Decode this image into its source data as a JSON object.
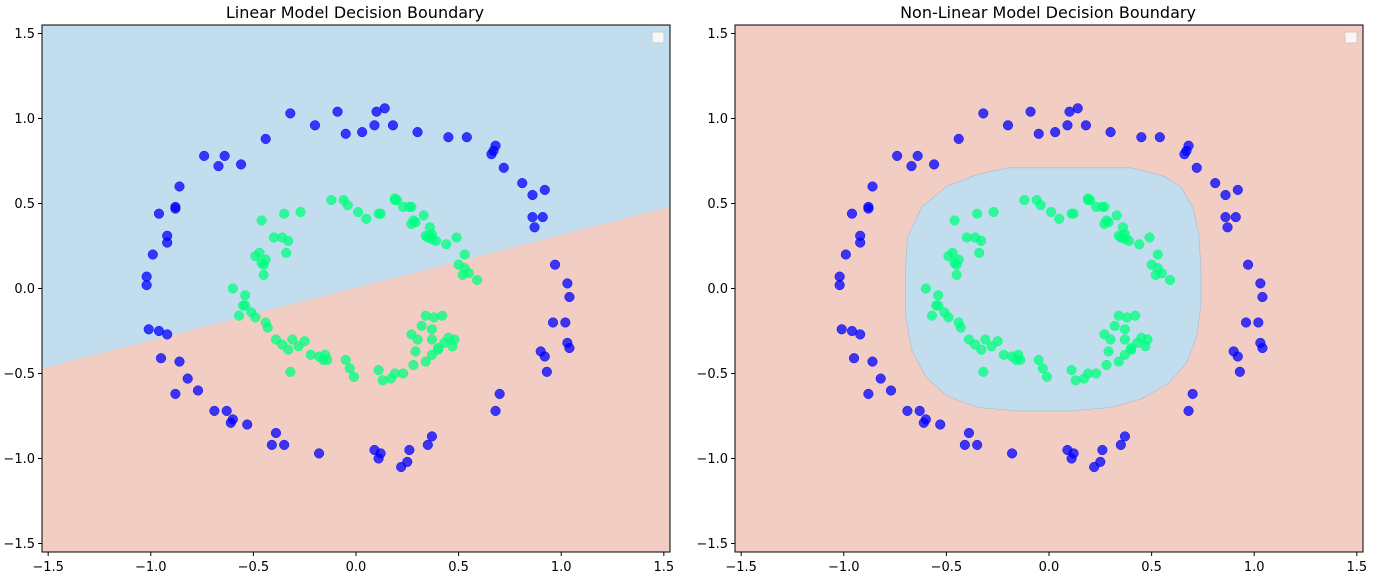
{
  "chart_data": [
    {
      "type": "scatter",
      "title": "Linear Model Decision Boundary",
      "xlim": [
        -1.53,
        1.53
      ],
      "ylim": [
        -1.55,
        1.55
      ],
      "xticks": [
        -1.5,
        -1.0,
        -0.5,
        0.0,
        0.5,
        1.0,
        1.5
      ],
      "xtick_labels": [
        "−1.5",
        "−1.0",
        "−0.5",
        "0.0",
        "0.5",
        "1.0",
        "1.5"
      ],
      "yticks": [
        -1.5,
        -1.0,
        -0.5,
        0.0,
        0.5,
        1.0,
        1.5
      ],
      "ytick_labels": [
        "−1.5",
        "−1.0",
        "−0.5",
        "0.0",
        "0.5",
        "1.0",
        "1.5"
      ],
      "legend": "empty, top-right",
      "regions": {
        "background_color": "#f2cdc3",
        "boundary_type": "linear",
        "boundary_line": [
          [
            -1.53,
            -0.47
          ],
          [
            1.53,
            0.48
          ]
        ],
        "above_color": "#c2dded",
        "below_color": "#f2cdc3"
      },
      "series_ref": "shared"
    },
    {
      "type": "scatter",
      "title": "Non-Linear Model Decision Boundary",
      "xlim": [
        -1.53,
        1.53
      ],
      "ylim": [
        -1.55,
        1.55
      ],
      "xticks": [
        -1.5,
        -1.0,
        -0.5,
        0.0,
        0.5,
        1.0,
        1.5
      ],
      "xtick_labels": [
        "−1.5",
        "−1.0",
        "−0.5",
        "0.0",
        "0.5",
        "1.0",
        "1.5"
      ],
      "yticks": [
        -1.5,
        -1.0,
        -0.5,
        0.0,
        0.5,
        1.0,
        1.5
      ],
      "ytick_labels": [
        "−1.5",
        "−1.0",
        "−0.5",
        "0.0",
        "0.5",
        "1.0",
        "1.5"
      ],
      "legend": "empty, top-right",
      "regions": {
        "background_color": "#f2cdc3",
        "boundary_type": "closed",
        "inner_color": "#c2dded",
        "boundary_polygon": [
          [
            -0.2,
            0.71
          ],
          [
            0.4,
            0.71
          ],
          [
            0.56,
            0.66
          ],
          [
            0.64,
            0.6
          ],
          [
            0.7,
            0.48
          ],
          [
            0.73,
            0.32
          ],
          [
            0.74,
            0.12
          ],
          [
            0.74,
            -0.1
          ],
          [
            0.72,
            -0.28
          ],
          [
            0.67,
            -0.44
          ],
          [
            0.58,
            -0.56
          ],
          [
            0.45,
            -0.65
          ],
          [
            0.3,
            -0.7
          ],
          [
            0.1,
            -0.72
          ],
          [
            -0.15,
            -0.72
          ],
          [
            -0.35,
            -0.7
          ],
          [
            -0.5,
            -0.63
          ],
          [
            -0.6,
            -0.52
          ],
          [
            -0.67,
            -0.36
          ],
          [
            -0.7,
            -0.15
          ],
          [
            -0.7,
            0.1
          ],
          [
            -0.69,
            0.3
          ],
          [
            -0.62,
            0.48
          ],
          [
            -0.5,
            0.6
          ],
          [
            -0.35,
            0.67
          ]
        ]
      },
      "series_ref": "shared"
    }
  ],
  "series": [
    {
      "class": 0,
      "color": "#0000ff",
      "points": [
        [
          -1.02,
          0.07
        ],
        [
          -1.02,
          0.02
        ],
        [
          -0.99,
          0.2
        ],
        [
          -0.96,
          0.44
        ],
        [
          -0.92,
          0.31
        ],
        [
          -0.92,
          0.27
        ],
        [
          -0.88,
          0.48
        ],
        [
          -0.88,
          0.47
        ],
        [
          -0.86,
          0.6
        ],
        [
          -0.74,
          0.78
        ],
        [
          -0.67,
          0.72
        ],
        [
          -0.64,
          0.78
        ],
        [
          -0.56,
          0.73
        ],
        [
          -0.44,
          0.88
        ],
        [
          -0.32,
          1.03
        ],
        [
          -0.2,
          0.96
        ],
        [
          -0.09,
          1.04
        ],
        [
          -0.05,
          0.91
        ],
        [
          0.03,
          0.92
        ],
        [
          0.09,
          0.96
        ],
        [
          0.1,
          1.04
        ],
        [
          0.14,
          1.06
        ],
        [
          0.18,
          0.96
        ],
        [
          0.3,
          0.92
        ],
        [
          0.45,
          0.89
        ],
        [
          0.54,
          0.89
        ],
        [
          0.66,
          0.79
        ],
        [
          0.68,
          0.84
        ],
        [
          0.67,
          0.81
        ],
        [
          0.72,
          0.71
        ],
        [
          0.81,
          0.62
        ],
        [
          0.86,
          0.55
        ],
        [
          0.92,
          0.58
        ],
        [
          0.86,
          0.42
        ],
        [
          0.87,
          0.36
        ],
        [
          0.91,
          0.42
        ],
        [
          0.97,
          0.14
        ],
        [
          1.03,
          0.03
        ],
        [
          1.04,
          -0.05
        ],
        [
          0.96,
          -0.2
        ],
        [
          1.02,
          -0.2
        ],
        [
          1.03,
          -0.32
        ],
        [
          1.04,
          -0.35
        ],
        [
          0.9,
          -0.37
        ],
        [
          0.92,
          -0.4
        ],
        [
          0.93,
          -0.49
        ],
        [
          0.7,
          -0.62
        ],
        [
          0.68,
          -0.72
        ],
        [
          0.37,
          -0.87
        ],
        [
          0.35,
          -0.92
        ],
        [
          0.26,
          -0.95
        ],
        [
          0.25,
          -1.02
        ],
        [
          0.22,
          -1.05
        ],
        [
          0.12,
          -0.97
        ],
        [
          0.11,
          -1.0
        ],
        [
          0.09,
          -0.95
        ],
        [
          -0.18,
          -0.97
        ],
        [
          -0.35,
          -0.92
        ],
        [
          -0.41,
          -0.92
        ],
        [
          -0.39,
          -0.85
        ],
        [
          -0.53,
          -0.8
        ],
        [
          -0.6,
          -0.77
        ],
        [
          -0.61,
          -0.79
        ],
        [
          -0.63,
          -0.72
        ],
        [
          -0.69,
          -0.72
        ],
        [
          -0.77,
          -0.6
        ],
        [
          -0.82,
          -0.53
        ],
        [
          -0.88,
          -0.62
        ],
        [
          -0.86,
          -0.43
        ],
        [
          -0.92,
          -0.27
        ],
        [
          -0.96,
          -0.25
        ],
        [
          -1.01,
          -0.24
        ],
        [
          -0.95,
          -0.41
        ]
      ]
    },
    {
      "class": 1,
      "color": "#00ff7f",
      "points": [
        [
          -0.46,
          0.4
        ],
        [
          -0.35,
          0.44
        ],
        [
          -0.4,
          0.3
        ],
        [
          -0.36,
          0.3
        ],
        [
          -0.33,
          0.28
        ],
        [
          -0.47,
          0.21
        ],
        [
          -0.49,
          0.19
        ],
        [
          -0.46,
          0.15
        ],
        [
          -0.34,
          0.21
        ],
        [
          -0.44,
          0.17
        ],
        [
          -0.45,
          0.14
        ],
        [
          -0.45,
          0.08
        ],
        [
          -0.54,
          -0.04
        ],
        [
          -0.6,
          0.0
        ],
        [
          -0.55,
          -0.1
        ],
        [
          -0.54,
          -0.1
        ],
        [
          -0.51,
          -0.14
        ],
        [
          -0.49,
          -0.17
        ],
        [
          -0.57,
          -0.16
        ],
        [
          -0.44,
          -0.2
        ],
        [
          -0.43,
          -0.23
        ],
        [
          -0.39,
          -0.3
        ],
        [
          -0.36,
          -0.33
        ],
        [
          -0.33,
          -0.36
        ],
        [
          -0.31,
          -0.3
        ],
        [
          -0.28,
          -0.34
        ],
        [
          -0.25,
          -0.31
        ],
        [
          -0.22,
          -0.39
        ],
        [
          -0.18,
          -0.4
        ],
        [
          -0.16,
          -0.42
        ],
        [
          -0.14,
          -0.42
        ],
        [
          -0.15,
          -0.39
        ],
        [
          -0.32,
          -0.49
        ],
        [
          -0.05,
          -0.42
        ],
        [
          -0.03,
          -0.47
        ],
        [
          0.11,
          -0.48
        ],
        [
          -0.01,
          -0.52
        ],
        [
          0.13,
          -0.54
        ],
        [
          0.17,
          -0.53
        ],
        [
          0.19,
          -0.5
        ],
        [
          0.23,
          -0.5
        ],
        [
          0.28,
          -0.45
        ],
        [
          0.34,
          -0.43
        ],
        [
          0.29,
          -0.37
        ],
        [
          0.37,
          -0.39
        ],
        [
          0.4,
          -0.36
        ],
        [
          0.43,
          -0.32
        ],
        [
          0.4,
          -0.35
        ],
        [
          0.47,
          -0.34
        ],
        [
          0.45,
          -0.29
        ],
        [
          0.37,
          -0.3
        ],
        [
          0.3,
          -0.3
        ],
        [
          0.27,
          -0.27
        ],
        [
          0.34,
          -0.16
        ],
        [
          0.38,
          -0.17
        ],
        [
          0.42,
          -0.16
        ],
        [
          0.48,
          -0.3
        ],
        [
          0.37,
          -0.24
        ],
        [
          0.32,
          -0.22
        ],
        [
          0.5,
          0.14
        ],
        [
          0.53,
          0.12
        ],
        [
          0.52,
          0.08
        ],
        [
          0.59,
          0.05
        ],
        [
          0.55,
          0.09
        ],
        [
          0.53,
          0.2
        ],
        [
          0.44,
          0.26
        ],
        [
          0.49,
          0.3
        ],
        [
          0.39,
          0.28
        ],
        [
          0.37,
          0.29
        ],
        [
          0.34,
          0.31
        ],
        [
          0.35,
          0.3
        ],
        [
          0.37,
          0.32
        ],
        [
          0.28,
          0.4
        ],
        [
          0.33,
          0.43
        ],
        [
          0.36,
          0.36
        ],
        [
          0.27,
          0.48
        ],
        [
          0.26,
          0.48
        ],
        [
          0.19,
          0.52
        ],
        [
          0.19,
          0.53
        ],
        [
          0.12,
          0.44
        ],
        [
          0.05,
          0.41
        ],
        [
          0.01,
          0.45
        ],
        [
          -0.04,
          0.49
        ],
        [
          -0.12,
          0.52
        ],
        [
          -0.06,
          0.52
        ],
        [
          -0.27,
          0.45
        ],
        [
          0.2,
          0.52
        ],
        [
          0.23,
          0.48
        ],
        [
          0.29,
          0.39
        ],
        [
          0.11,
          0.44
        ],
        [
          0.27,
          0.38
        ],
        [
          0.36,
          0.31
        ]
      ]
    }
  ]
}
